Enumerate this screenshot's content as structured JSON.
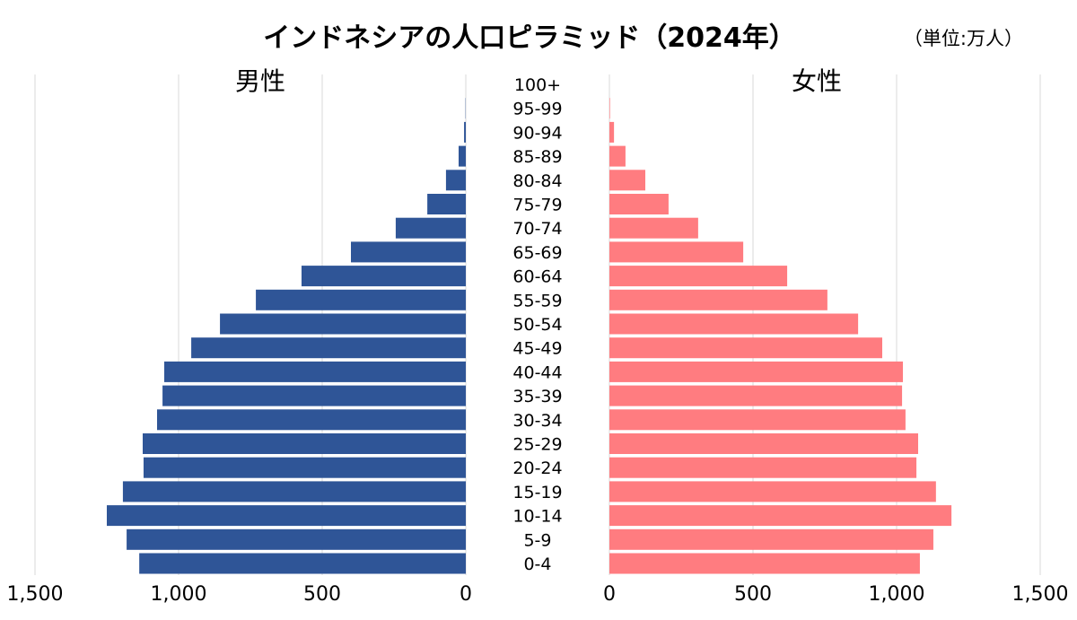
{
  "chart_data": {
    "type": "bar",
    "orientation": "horizontal-pyramid",
    "title": "インドネシアの人口ピラミッド（2024年）",
    "unit_note": "（単位:万人）",
    "categories": [
      "100+",
      "95-99",
      "90-94",
      "85-89",
      "80-84",
      "75-79",
      "70-74",
      "65-69",
      "60-64",
      "55-59",
      "50-54",
      "45-49",
      "40-44",
      "35-39",
      "30-34",
      "25-29",
      "20-24",
      "15-19",
      "10-14",
      "5-9",
      "0-4"
    ],
    "series": [
      {
        "name": "男性",
        "color": "#2F5597",
        "side": "left",
        "values": [
          0,
          1,
          6,
          25,
          69,
          134,
          244,
          400,
          572,
          731,
          856,
          956,
          1050,
          1056,
          1075,
          1125,
          1122,
          1194,
          1250,
          1181,
          1137
        ]
      },
      {
        "name": "女性",
        "color": "#FF7C80",
        "side": "right",
        "values": [
          0,
          2,
          16,
          56,
          125,
          206,
          309,
          466,
          619,
          759,
          866,
          950,
          1022,
          1019,
          1031,
          1075,
          1069,
          1137,
          1191,
          1128,
          1081
        ]
      }
    ],
    "xlim": [
      0,
      1500
    ],
    "xticks": [
      0,
      500,
      1000,
      1500
    ],
    "xtick_labels": [
      "0",
      "500",
      "1,000",
      "1,500"
    ],
    "grid": true
  }
}
